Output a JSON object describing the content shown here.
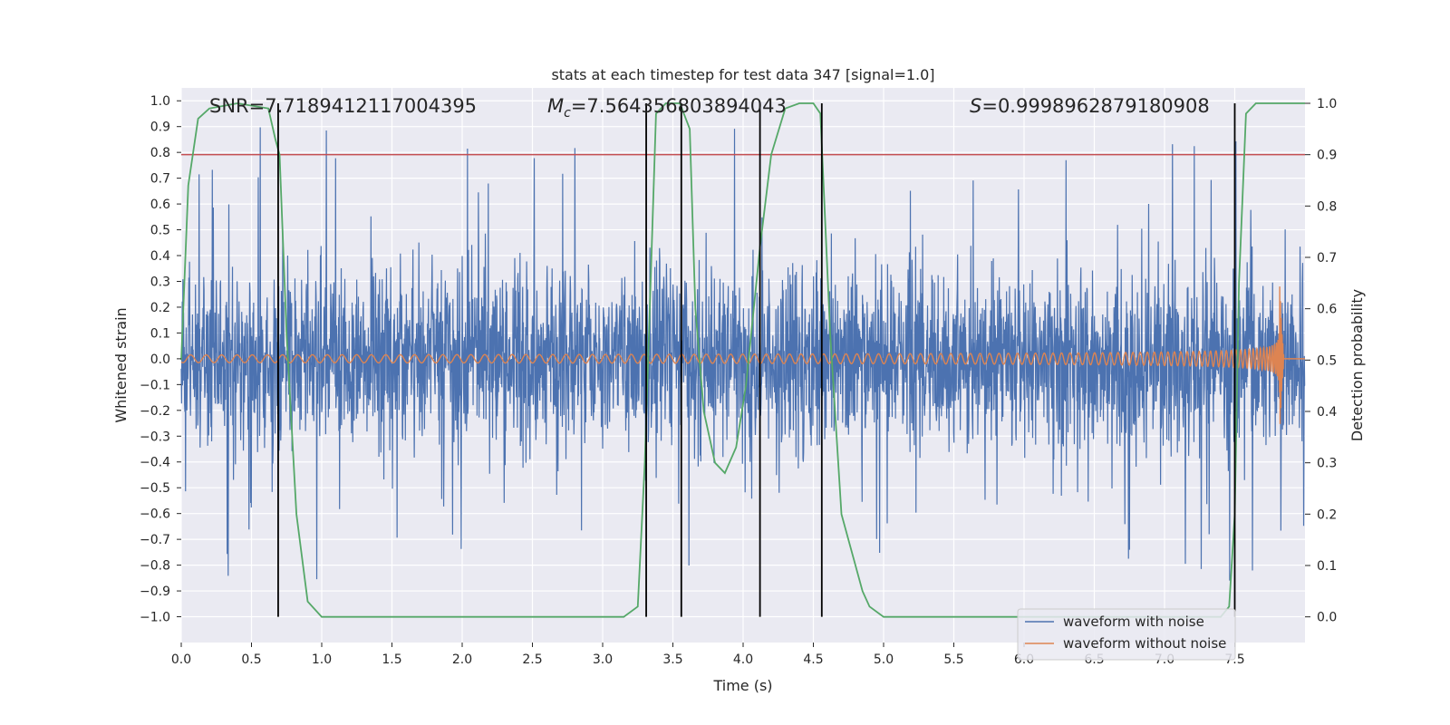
{
  "chart_data": {
    "type": "line",
    "title": "stats at each timestep for test data 347 [signal=1.0]",
    "xlabel": "Time (s)",
    "ylabel": "Whitened strain",
    "ylabel_right": "Detection probability",
    "xlim": [
      0.0,
      8.0
    ],
    "ylim": [
      -1.1,
      1.05
    ],
    "ylim_right": [
      -0.05,
      1.03
    ],
    "x_ticks": [
      "0.0",
      "0.5",
      "1.0",
      "1.5",
      "2.0",
      "2.5",
      "3.0",
      "3.5",
      "4.0",
      "4.5",
      "5.0",
      "5.5",
      "6.0",
      "6.5",
      "7.0",
      "7.5"
    ],
    "x_tick_values": [
      0.0,
      0.5,
      1.0,
      1.5,
      2.0,
      2.5,
      3.0,
      3.5,
      4.0,
      4.5,
      5.0,
      5.5,
      6.0,
      6.5,
      7.0,
      7.5
    ],
    "y_ticks": [
      "1.0",
      "0.9",
      "0.8",
      "0.7",
      "0.6",
      "0.5",
      "0.4",
      "0.3",
      "0.2",
      "0.1",
      "0.0",
      "−0.1",
      "−0.2",
      "−0.3",
      "−0.4",
      "−0.5",
      "−0.6",
      "−0.7",
      "−0.8",
      "−0.9",
      "−1.0"
    ],
    "y_tick_values": [
      1.0,
      0.9,
      0.8,
      0.7,
      0.6,
      0.5,
      0.4,
      0.3,
      0.2,
      0.1,
      0.0,
      -0.1,
      -0.2,
      -0.3,
      -0.4,
      -0.5,
      -0.6,
      -0.7,
      -0.8,
      -0.9,
      -1.0
    ],
    "y_right_ticks": [
      "1.0",
      "0.9",
      "0.8",
      "0.7",
      "0.6",
      "0.5",
      "0.4",
      "0.3",
      "0.2",
      "0.1",
      "0.0"
    ],
    "y_right_tick_values": [
      1.0,
      0.9,
      0.8,
      0.7,
      0.6,
      0.5,
      0.4,
      0.3,
      0.2,
      0.1,
      0.0
    ],
    "grid": true,
    "legend_position": "bottom-right",
    "annotations": {
      "snr": "SNR=7.7189412117004395",
      "mc_symbol": "M",
      "mc_subscript": "c",
      "mc_value": "=7.564356803894043",
      "s_symbol": "S",
      "s_value": "=0.9998962879180908"
    },
    "series": [
      {
        "name": "waveform with noise",
        "color": "#4c72b0",
        "axis": "left",
        "kind": "noise",
        "envelope": 0.42,
        "peak_max": 0.95,
        "peak_min": -1.0
      },
      {
        "name": "waveform without noise",
        "color": "#dd8452",
        "axis": "left",
        "kind": "chirp",
        "start_amp": 0.015,
        "merger_time": 7.82,
        "merger_amp": 0.28,
        "ringdown_end": 7.85
      },
      {
        "name": "detection probability",
        "color": "#55a868",
        "axis": "right",
        "x": [
          0.0,
          0.05,
          0.12,
          0.2,
          0.4,
          0.62,
          0.67,
          0.7,
          0.75,
          0.82,
          0.9,
          1.0,
          1.5,
          2.0,
          2.5,
          3.0,
          3.15,
          3.25,
          3.3,
          3.38,
          3.45,
          3.55,
          3.62,
          3.66,
          3.72,
          3.8,
          3.87,
          3.95,
          4.02,
          4.12,
          4.2,
          4.3,
          4.4,
          4.5,
          4.55,
          4.62,
          4.7,
          4.85,
          4.9,
          5.0,
          6.0,
          7.0,
          7.2,
          7.4,
          7.46,
          7.5,
          7.53,
          7.58,
          7.65,
          7.8,
          8.0
        ],
        "y": [
          0.5,
          0.84,
          0.97,
          0.99,
          1.0,
          0.99,
          0.93,
          0.9,
          0.55,
          0.2,
          0.03,
          0.0,
          0.0,
          0.0,
          0.0,
          0.0,
          0.0,
          0.02,
          0.3,
          0.98,
          1.0,
          1.0,
          0.95,
          0.6,
          0.4,
          0.3,
          0.28,
          0.33,
          0.45,
          0.72,
          0.9,
          0.99,
          1.0,
          1.0,
          0.98,
          0.55,
          0.2,
          0.05,
          0.02,
          0.0,
          0.0,
          0.0,
          0.0,
          0.0,
          0.02,
          0.2,
          0.65,
          0.98,
          1.0,
          1.0,
          1.0
        ]
      }
    ],
    "threshold": {
      "value": 0.9,
      "axis": "right",
      "color": "#c44e52"
    },
    "detection_marks": [
      0.69,
      3.31,
      3.56,
      4.12,
      4.56,
      7.5
    ],
    "mark_color": "#000000"
  }
}
